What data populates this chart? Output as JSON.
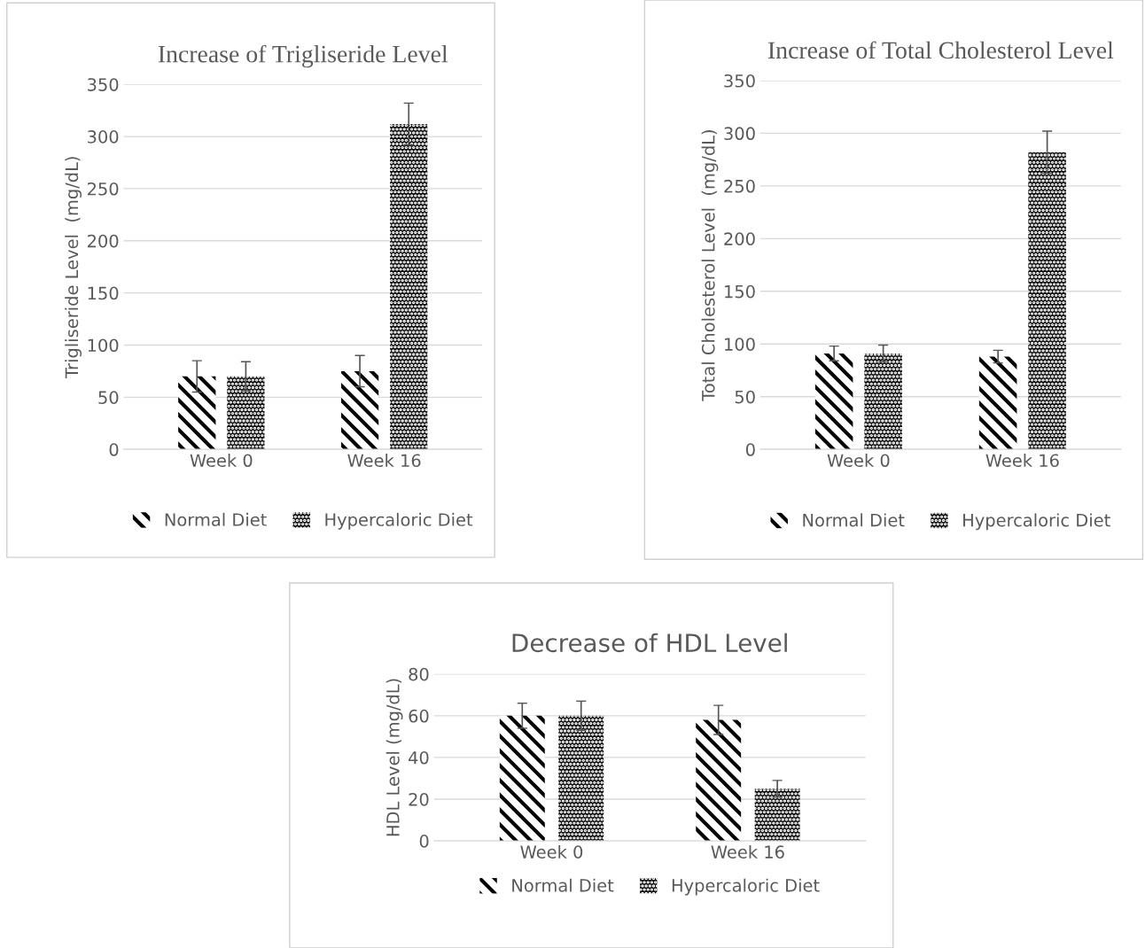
{
  "chart_data": [
    {
      "type": "bar",
      "title": "Increase of Trigliseride Level",
      "ylabel": "Trigliseride Level  (mg/dL)",
      "categories": [
        "Week 0",
        "Week 16"
      ],
      "series": [
        {
          "name": "Normal Diet",
          "color": "#000000",
          "values": [
            70,
            75
          ],
          "errors": [
            15,
            15
          ]
        },
        {
          "name": "Hypercaloric Diet",
          "color": "#000000",
          "values": [
            70,
            312
          ],
          "errors": [
            14,
            20
          ]
        }
      ],
      "ylim": [
        0,
        350
      ],
      "yticks": [
        0,
        50,
        100,
        150,
        200,
        250,
        300,
        350
      ],
      "grid": "y",
      "legend": "bottom"
    },
    {
      "type": "bar",
      "title": "Increase of Total Cholesterol Level",
      "ylabel": "Total Cholesterol Level  (mg/dL)",
      "categories": [
        "Week 0",
        "Week 16"
      ],
      "series": [
        {
          "name": "Normal Diet",
          "color": "#000000",
          "values": [
            91,
            88
          ],
          "errors": [
            7,
            6
          ]
        },
        {
          "name": "Hypercaloric Diet",
          "color": "#000000",
          "values": [
            91,
            282
          ],
          "errors": [
            8,
            20
          ]
        }
      ],
      "ylim": [
        0,
        350
      ],
      "yticks": [
        0,
        50,
        100,
        150,
        200,
        250,
        300,
        350
      ],
      "grid": "y",
      "legend": "bottom"
    },
    {
      "type": "bar",
      "title": "Decrease of HDL Level",
      "ylabel": "HDL Level (mg/dL)",
      "categories": [
        "Week 0",
        "Week 16"
      ],
      "series": [
        {
          "name": "Normal Diet",
          "color": "#000000",
          "values": [
            60,
            58
          ],
          "errors": [
            6,
            7
          ]
        },
        {
          "name": "Hypercaloric Diet",
          "color": "#000000",
          "values": [
            60,
            25
          ],
          "errors": [
            7,
            4
          ]
        }
      ],
      "ylim": [
        0,
        80
      ],
      "yticks": [
        0,
        20,
        40,
        60,
        80
      ],
      "grid": "y",
      "legend": "bottom"
    }
  ]
}
